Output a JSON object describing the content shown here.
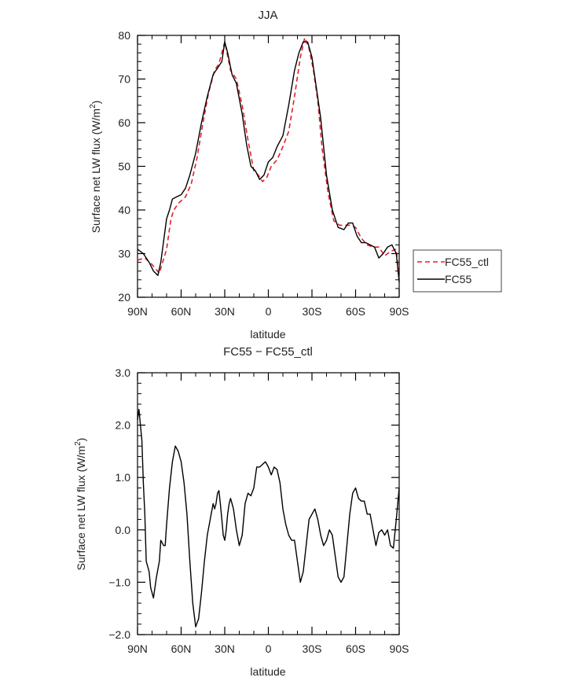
{
  "chart_data": [
    {
      "type": "line",
      "title": "JJA",
      "xlabel": "latitude",
      "ylabel_main": "Surface net LW flux (W/m",
      "ylabel_sup": "2",
      "ylabel_tail": ")",
      "xlim": [
        90,
        -90
      ],
      "ylim": [
        20,
        80
      ],
      "xticks": [
        90,
        60,
        30,
        0,
        -30,
        -60,
        -90
      ],
      "xtick_labels": [
        "90N",
        "60N",
        "30N",
        "0",
        "30S",
        "60S",
        "90S"
      ],
      "yticks": [
        20,
        30,
        40,
        50,
        60,
        70,
        80
      ],
      "ytick_labels": [
        "20",
        "30",
        "40",
        "50",
        "60",
        "70",
        "80"
      ],
      "legend_position": "right",
      "series": [
        {
          "name": "FC55_ctl",
          "color": "#e0202a",
          "dash": "dashed",
          "x": [
            90,
            85,
            80,
            75,
            70,
            67,
            65,
            62,
            57,
            53,
            49,
            45,
            41,
            37,
            34,
            30,
            26,
            22,
            18,
            14,
            10,
            7,
            4,
            1,
            -2,
            -6,
            -10,
            -14,
            -18,
            -22,
            -25,
            -28,
            -31,
            -34,
            -37,
            -41,
            -45,
            -49,
            -53,
            -56,
            -60,
            -64,
            -68,
            -72,
            -76,
            -80,
            -84,
            -88,
            -90
          ],
          "y": [
            28.5,
            29,
            27.5,
            25.5,
            31,
            38,
            40,
            41.5,
            43,
            46,
            52,
            60,
            67,
            72,
            73.5,
            78.5,
            72,
            70,
            64,
            56,
            49,
            48,
            46.5,
            47.5,
            50,
            51.5,
            54.5,
            58,
            66,
            75,
            79.5,
            77,
            72,
            65,
            54,
            44,
            37.5,
            36.5,
            36.5,
            36.5,
            36,
            33.5,
            32,
            31.5,
            31.5,
            29.5,
            30.5,
            31,
            24
          ]
        },
        {
          "name": "FC55",
          "color": "#000000",
          "dash": "solid",
          "x": [
            90,
            86,
            82,
            79,
            76,
            74,
            72,
            70,
            68,
            66,
            63,
            60,
            57,
            54,
            50,
            46,
            42,
            38,
            35,
            32,
            30,
            28,
            25,
            22,
            18,
            15,
            12,
            9,
            6,
            3,
            0,
            -3,
            -6,
            -10,
            -14,
            -18,
            -21,
            -24,
            -27,
            -30,
            -33,
            -36,
            -40,
            -44,
            -48,
            -52,
            -55,
            -58,
            -61,
            -64,
            -67,
            -70,
            -73,
            -76,
            -79,
            -82,
            -85,
            -88,
            -90
          ],
          "y": [
            31,
            30,
            28,
            26,
            25,
            28,
            33,
            38,
            40,
            42.5,
            43,
            43.5,
            45,
            48,
            53,
            60,
            66,
            71,
            72.5,
            74,
            78.5,
            76,
            71,
            69,
            62,
            55,
            50,
            49,
            47,
            48,
            51,
            52,
            54.5,
            57,
            64,
            72,
            76,
            78.5,
            78.5,
            75,
            68,
            61,
            48,
            40,
            36,
            35.5,
            37,
            37,
            34,
            32.5,
            32.5,
            32,
            31.5,
            29,
            30,
            31.5,
            32,
            30,
            23.5
          ]
        }
      ]
    },
    {
      "type": "line",
      "title": "FC55 − FC55_ctl",
      "xlabel": "latitude",
      "ylabel_main": "Surface net LW flux (W/m",
      "ylabel_sup": "2",
      "ylabel_tail": ")",
      "xlim": [
        90,
        -90
      ],
      "ylim": [
        -2.0,
        3.0
      ],
      "xticks": [
        90,
        60,
        30,
        0,
        -30,
        -60,
        -90
      ],
      "xtick_labels": [
        "90N",
        "60N",
        "30N",
        "0",
        "30S",
        "60S",
        "90S"
      ],
      "yticks": [
        -2.0,
        -1.0,
        0.0,
        1.0,
        2.0,
        3.0
      ],
      "ytick_labels": [
        "−2.0",
        "−1.0",
        "0.0",
        "1.0",
        "2.0",
        "3.0"
      ],
      "series": [
        {
          "name": "",
          "color": "#000000",
          "dash": "solid",
          "x": [
            90,
            89,
            87,
            86,
            85,
            84,
            82,
            81,
            79,
            77,
            75,
            74,
            72,
            71,
            70,
            68,
            66,
            64,
            62,
            60,
            58,
            56,
            54,
            52,
            50,
            48,
            46,
            44,
            42,
            40,
            38,
            37,
            36,
            35,
            34,
            33,
            32,
            31,
            30,
            29,
            28,
            27,
            26,
            25,
            24,
            22,
            20,
            18,
            16,
            14,
            12,
            10,
            8,
            6,
            4,
            2,
            0,
            -2,
            -4,
            -6,
            -8,
            -10,
            -12,
            -14,
            -16,
            -18,
            -20,
            -22,
            -24,
            -26,
            -28,
            -30,
            -32,
            -34,
            -36,
            -38,
            -40,
            -42,
            -44,
            -46,
            -48,
            -50,
            -52,
            -54,
            -56,
            -58,
            -60,
            -62,
            -64,
            -66,
            -68,
            -70,
            -72,
            -74,
            -76,
            -78,
            -80,
            -82,
            -84,
            -86,
            -88,
            -90
          ],
          "y": [
            2.1,
            2.3,
            1.7,
            0.9,
            0.3,
            -0.6,
            -0.8,
            -1.1,
            -1.3,
            -0.9,
            -0.6,
            -0.2,
            -0.3,
            -0.3,
            0.1,
            0.8,
            1.3,
            1.6,
            1.5,
            1.3,
            0.9,
            0.3,
            -0.6,
            -1.4,
            -1.85,
            -1.7,
            -1.2,
            -0.6,
            -0.1,
            0.2,
            0.5,
            0.4,
            0.5,
            0.7,
            0.75,
            0.5,
            0.2,
            -0.1,
            -0.2,
            0.0,
            0.3,
            0.5,
            0.6,
            0.5,
            0.4,
            0.0,
            -0.3,
            -0.1,
            0.5,
            0.7,
            0.65,
            0.8,
            1.2,
            1.2,
            1.25,
            1.3,
            1.2,
            1.05,
            1.2,
            1.15,
            0.9,
            0.4,
            0.1,
            -0.1,
            -0.2,
            -0.2,
            -0.6,
            -1.0,
            -0.8,
            -0.3,
            0.2,
            0.3,
            0.4,
            0.2,
            -0.1,
            -0.3,
            -0.2,
            0.0,
            -0.1,
            -0.5,
            -0.9,
            -1.0,
            -0.9,
            -0.3,
            0.3,
            0.7,
            0.8,
            0.6,
            0.55,
            0.55,
            0.3,
            0.3,
            0.0,
            -0.3,
            -0.05,
            0.0,
            -0.1,
            0.0,
            -0.3,
            -0.35,
            0.2,
            0.8
          ]
        }
      ]
    }
  ]
}
